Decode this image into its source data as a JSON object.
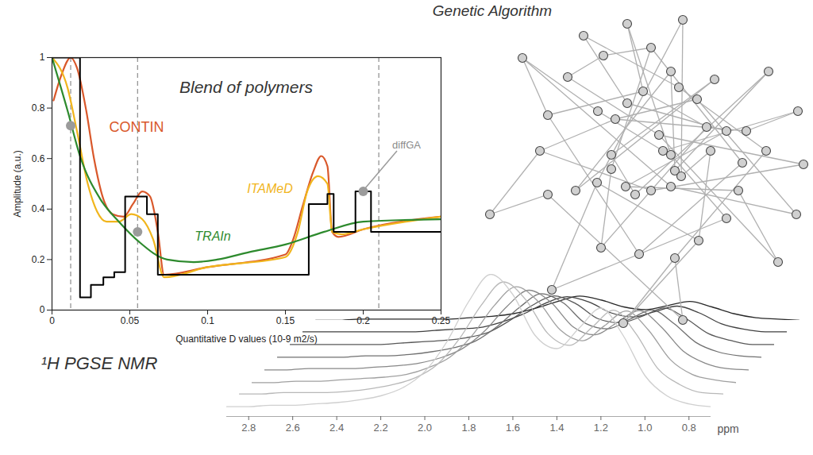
{
  "chart_data": [
    {
      "type": "line",
      "title": "Blend of polymers",
      "xlabel": "Quantitative D values (10-9 m2/s)",
      "ylabel": "Amplitude (a.u.)",
      "xlim": [
        0,
        0.25
      ],
      "ylim": [
        0,
        1
      ],
      "xticks": [
        0,
        0.05,
        0.1,
        0.15,
        0.2,
        0.25
      ],
      "yticks": [
        0,
        0.2,
        0.4,
        0.6,
        0.8,
        1
      ],
      "series": [
        {
          "name": "CONTIN",
          "color": "#d9582b",
          "type": "line",
          "x": [
            0.001,
            0.006,
            0.012,
            0.016,
            0.022,
            0.027,
            0.033,
            0.039,
            0.046,
            0.052,
            0.058,
            0.063,
            0.068,
            0.072,
            0.1,
            0.15,
            0.155,
            0.161,
            0.168,
            0.173,
            0.177,
            0.18,
            0.184,
            0.2,
            0.25
          ],
          "values": [
            0.83,
            0.93,
            1.0,
            0.96,
            0.79,
            0.6,
            0.44,
            0.38,
            0.37,
            0.42,
            0.47,
            0.45,
            0.31,
            0.14,
            0.17,
            0.22,
            0.28,
            0.41,
            0.55,
            0.61,
            0.57,
            0.31,
            0.29,
            0.32,
            0.37
          ]
        },
        {
          "name": "ITAMeD",
          "color": "#f1b51c",
          "type": "line",
          "x": [
            0,
            0.01,
            0.016,
            0.023,
            0.029,
            0.035,
            0.043,
            0.051,
            0.058,
            0.065,
            0.072,
            0.1,
            0.15,
            0.158,
            0.164,
            0.171,
            0.177,
            0.18,
            0.186,
            0.2,
            0.25
          ],
          "values": [
            1.0,
            0.88,
            0.71,
            0.5,
            0.39,
            0.35,
            0.35,
            0.38,
            0.36,
            0.28,
            0.13,
            0.17,
            0.21,
            0.31,
            0.47,
            0.53,
            0.5,
            0.31,
            0.3,
            0.32,
            0.37
          ]
        },
        {
          "name": "TRAIn",
          "color": "#2d8a2d",
          "type": "line",
          "x": [
            0,
            0.01,
            0.018,
            0.031,
            0.043,
            0.056,
            0.074,
            0.091,
            0.106,
            0.127,
            0.15,
            0.175,
            0.2,
            0.25
          ],
          "values": [
            1.0,
            0.79,
            0.61,
            0.44,
            0.35,
            0.27,
            0.2,
            0.19,
            0.2,
            0.23,
            0.26,
            0.31,
            0.35,
            0.36
          ]
        },
        {
          "name": "diffGA",
          "color": "#000000",
          "type": "step",
          "x": [
            0,
            0.018,
            0.025,
            0.033,
            0.04,
            0.047,
            0.061,
            0.068,
            0.165,
            0.177,
            0.181,
            0.195,
            0.205,
            0.25
          ],
          "values": [
            1.0,
            0.05,
            0.1,
            0.13,
            0.15,
            0.45,
            0.38,
            0.14,
            0.42,
            0.46,
            0.31,
            0.47,
            0.31,
            0.31
          ]
        }
      ],
      "reference_lines": [
        0.012,
        0.055,
        0.21
      ],
      "highlight_points": {
        "x": [
          0.012,
          0.055,
          0.2
        ],
        "y": [
          0.73,
          0.31,
          0.47
        ]
      }
    },
    {
      "type": "line",
      "title": "¹H PGSE NMR",
      "xlabel": "ppm",
      "tick_labels": "x",
      "x": [
        2.9,
        2.8,
        2.7,
        2.6,
        2.5,
        2.4,
        2.3,
        2.2,
        2.1,
        2.0,
        1.9,
        1.8,
        1.7,
        1.6,
        1.5,
        1.4,
        1.3,
        1.2,
        1.1,
        1.0,
        0.9,
        0.8,
        0.7
      ],
      "xlim": [
        2.9,
        0.7
      ],
      "ylim": [
        0,
        1
      ],
      "xticks": [
        2.8,
        2.6,
        2.4,
        2.2,
        {
          "value": 2,
          "label": "2.0"
        },
        1.8,
        1.6,
        1.4,
        1.2,
        {
          "value": 1,
          "label": "1.0"
        },
        0.8
      ],
      "series": [
        {
          "color": "#cfcfcf",
          "values": [
            0.02,
            0.02,
            0.03,
            0.03,
            0.04,
            0.05,
            0.07,
            0.1,
            0.16,
            0.28,
            0.5,
            0.8,
            1.0,
            0.85,
            0.55,
            0.45,
            0.6,
            0.75,
            0.55,
            0.25,
            0.1,
            0.04,
            0.02
          ]
        },
        {
          "color": "#b8b8b8",
          "values": [
            0.02,
            0.02,
            0.03,
            0.03,
            0.03,
            0.04,
            0.06,
            0.09,
            0.14,
            0.24,
            0.43,
            0.68,
            0.85,
            0.72,
            0.47,
            0.38,
            0.51,
            0.64,
            0.47,
            0.21,
            0.09,
            0.03,
            0.02
          ]
        },
        {
          "color": "#a0a0a0",
          "values": [
            0.01,
            0.01,
            0.02,
            0.02,
            0.03,
            0.04,
            0.05,
            0.07,
            0.12,
            0.2,
            0.36,
            0.58,
            0.72,
            0.61,
            0.4,
            0.32,
            0.43,
            0.54,
            0.4,
            0.18,
            0.07,
            0.03,
            0.01
          ]
        },
        {
          "color": "#888888",
          "values": [
            0.01,
            0.01,
            0.02,
            0.02,
            0.02,
            0.03,
            0.04,
            0.06,
            0.1,
            0.17,
            0.3,
            0.48,
            0.6,
            0.51,
            0.33,
            0.27,
            0.36,
            0.45,
            0.33,
            0.15,
            0.06,
            0.02,
            0.01
          ]
        },
        {
          "color": "#707070",
          "values": [
            0.01,
            0.01,
            0.01,
            0.01,
            0.02,
            0.02,
            0.03,
            0.05,
            0.08,
            0.13,
            0.24,
            0.38,
            0.48,
            0.41,
            0.26,
            0.22,
            0.29,
            0.36,
            0.26,
            0.12,
            0.05,
            0.02,
            0.01
          ]
        },
        {
          "color": "#585858",
          "values": [
            0.01,
            0.01,
            0.01,
            0.01,
            0.01,
            0.02,
            0.03,
            0.04,
            0.06,
            0.1,
            0.19,
            0.3,
            0.37,
            0.31,
            0.2,
            0.17,
            0.22,
            0.28,
            0.2,
            0.09,
            0.04,
            0.01,
            0.01
          ]
        },
        {
          "color": "#404040",
          "values": [
            0.01,
            0.01,
            0.01,
            0.01,
            0.01,
            0.01,
            0.02,
            0.03,
            0.04,
            0.08,
            0.14,
            0.22,
            0.27,
            0.23,
            0.15,
            0.12,
            0.16,
            0.2,
            0.15,
            0.07,
            0.03,
            0.01,
            0.01
          ]
        },
        {
          "color": "#282828",
          "values": [
            0.0,
            0.0,
            0.01,
            0.01,
            0.01,
            0.01,
            0.01,
            0.02,
            0.03,
            0.05,
            0.09,
            0.14,
            0.18,
            0.15,
            0.1,
            0.08,
            0.11,
            0.14,
            0.1,
            0.05,
            0.02,
            0.01,
            0.0
          ]
        }
      ]
    }
  ],
  "diagram": {
    "title": "Genetic Algorithm"
  }
}
